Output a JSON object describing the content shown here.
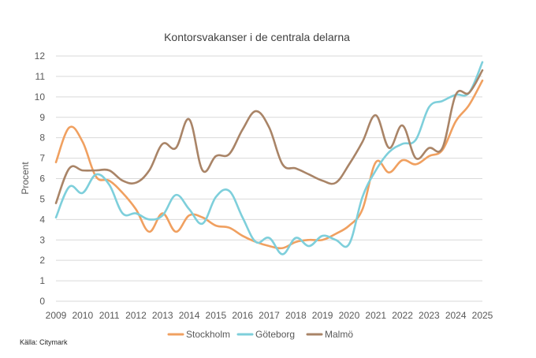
{
  "chart_data": {
    "type": "line",
    "title": "Kontorsvakanser i de centrala delarna",
    "xlabel": "",
    "ylabel": "Procent",
    "xlim": [
      2009,
      2025
    ],
    "ylim": [
      0,
      12
    ],
    "x_ticks": [
      "2009",
      "2010",
      "2011",
      "2012",
      "2013",
      "2014",
      "2015",
      "2016",
      "2017",
      "2018",
      "2019",
      "2020",
      "2021",
      "2022",
      "2023",
      "2024",
      "2025"
    ],
    "y_ticks": [
      "0",
      "1",
      "2",
      "3",
      "4",
      "5",
      "6",
      "7",
      "8",
      "9",
      "10",
      "11",
      "12"
    ],
    "grid": true,
    "legend_position": "bottom",
    "source": "Källa: Citymark",
    "series": [
      {
        "name": "Stockholm",
        "color": "#F0A060",
        "x": [
          2009,
          2009.5,
          2010,
          2010.5,
          2011,
          2011.5,
          2012,
          2012.5,
          2013,
          2013.5,
          2014,
          2014.5,
          2015,
          2015.5,
          2016,
          2016.5,
          2017,
          2017.5,
          2018,
          2018.5,
          2019,
          2019.5,
          2020,
          2020.5,
          2021,
          2021.5,
          2022,
          2022.5,
          2023,
          2023.5,
          2024,
          2024.5,
          2025
        ],
        "y": [
          6.8,
          8.5,
          7.8,
          6.1,
          5.9,
          5.3,
          4.5,
          3.4,
          4.3,
          3.4,
          4.2,
          4.1,
          3.7,
          3.6,
          3.2,
          2.9,
          2.7,
          2.6,
          2.9,
          3.0,
          3.0,
          3.3,
          3.7,
          4.5,
          6.8,
          6.3,
          6.9,
          6.7,
          7.1,
          7.4,
          8.8,
          9.6,
          10.8
        ]
      },
      {
        "name": "Göteborg",
        "color": "#7ECFDB",
        "x": [
          2009,
          2009.5,
          2010,
          2010.5,
          2011,
          2011.5,
          2012,
          2012.5,
          2013,
          2013.5,
          2014,
          2014.5,
          2015,
          2015.5,
          2016,
          2016.5,
          2017,
          2017.5,
          2018,
          2018.5,
          2019,
          2019.5,
          2020,
          2020.5,
          2021,
          2021.5,
          2022,
          2022.5,
          2023,
          2023.5,
          2024,
          2024.5,
          2025
        ],
        "y": [
          4.1,
          5.6,
          5.3,
          6.2,
          5.7,
          4.3,
          4.3,
          4.0,
          4.2,
          5.2,
          4.5,
          3.8,
          5.1,
          5.4,
          4.1,
          2.9,
          3.1,
          2.3,
          3.1,
          2.7,
          3.2,
          3.0,
          2.8,
          5.1,
          6.4,
          7.3,
          7.7,
          7.9,
          9.5,
          9.8,
          10.1,
          10.2,
          11.7
        ]
      },
      {
        "name": "Malmö",
        "color": "#A98467",
        "x": [
          2009,
          2009.5,
          2010,
          2010.5,
          2011,
          2011.5,
          2012,
          2012.5,
          2013,
          2013.5,
          2014,
          2014.5,
          2015,
          2015.5,
          2016,
          2016.5,
          2017,
          2017.5,
          2018,
          2018.5,
          2019,
          2019.5,
          2020,
          2020.5,
          2021,
          2021.5,
          2022,
          2022.5,
          2023,
          2023.5,
          2024,
          2024.5,
          2025
        ],
        "y": [
          4.8,
          6.5,
          6.4,
          6.4,
          6.4,
          5.9,
          5.8,
          6.4,
          7.7,
          7.5,
          8.9,
          6.4,
          7.1,
          7.2,
          8.4,
          9.3,
          8.5,
          6.7,
          6.5,
          6.2,
          5.9,
          5.8,
          6.7,
          7.8,
          9.1,
          7.5,
          8.6,
          7.0,
          7.5,
          7.5,
          10.1,
          10.2,
          11.3
        ]
      }
    ]
  }
}
